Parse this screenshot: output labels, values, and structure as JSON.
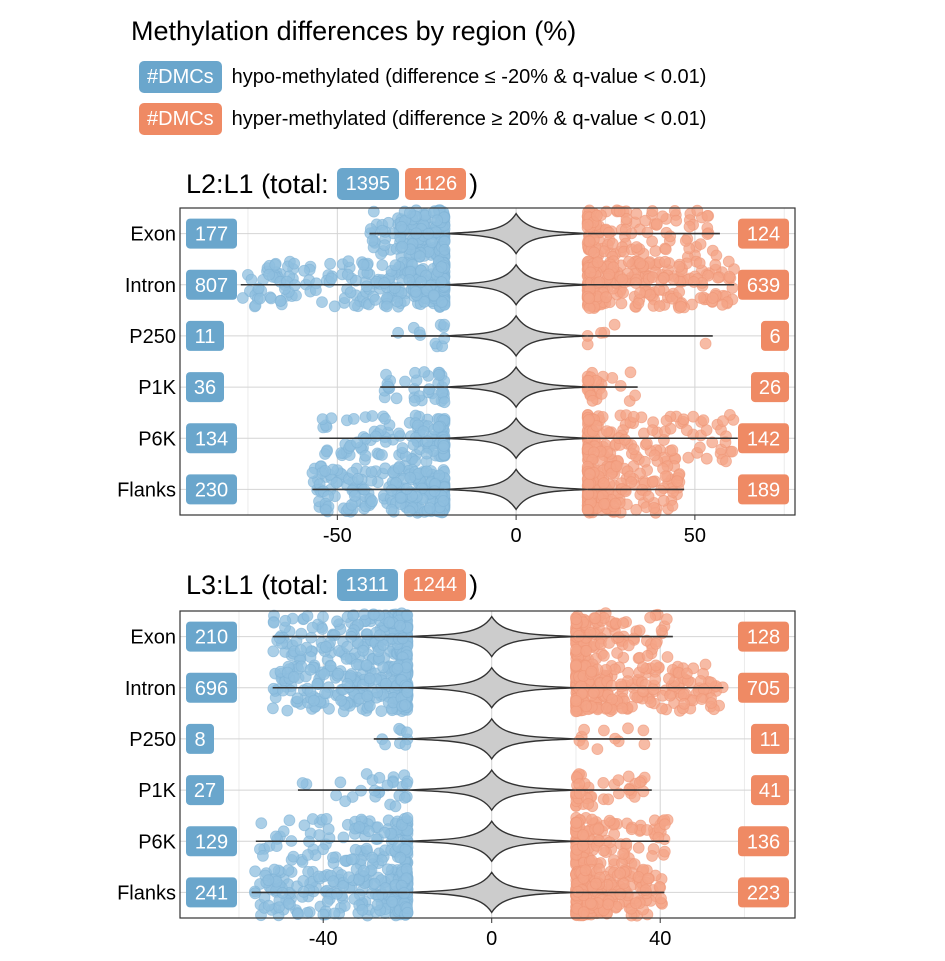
{
  "title": "Methylation differences by region (%)",
  "legend": [
    {
      "badge": "#DMCs",
      "text": "hypo-methylated  (difference ≤ -20% & q-value < 0.01)",
      "color": "#6aa6cc"
    },
    {
      "badge": "#DMCs",
      "text": "hyper-methylated (difference ≥ 20% & q-value < 0.01)",
      "color": "#ef8a64"
    }
  ],
  "colors": {
    "hypo_point": "#8fbfdf",
    "hyper_point": "#f4a487",
    "violin": "#cccccc",
    "hypo_badge": "#6aa6cc",
    "hyper_badge": "#ef8a64"
  },
  "chart_data": [
    {
      "type": "scatter",
      "title_prefix": "L2:L1 (total:",
      "title_suffix": ")",
      "total_hypo": "1395",
      "total_hyper": "1126",
      "categories": [
        "Exon",
        "Intron",
        "P250",
        "P1K",
        "P6K",
        "Flanks"
      ],
      "hypo_counts": [
        "177",
        "807",
        "11",
        "36",
        "134",
        "230"
      ],
      "hyper_counts": [
        "124",
        "639",
        "6",
        "26",
        "142",
        "189"
      ],
      "whisker_min": [
        -41,
        -77,
        -35,
        -38,
        -55,
        -57
      ],
      "whisker_max": [
        57,
        61,
        55,
        34,
        62,
        47
      ],
      "xlim": [
        -94,
        78
      ],
      "xticks": [
        -50,
        0,
        50
      ],
      "grid": true
    },
    {
      "type": "scatter",
      "title_prefix": "L3:L1 (total:",
      "title_suffix": ")",
      "total_hypo": "1311",
      "total_hyper": "1244",
      "categories": [
        "Exon",
        "Intron",
        "P250",
        "P1K",
        "P6K",
        "Flanks"
      ],
      "hypo_counts": [
        "210",
        "696",
        "8",
        "27",
        "129",
        "241"
      ],
      "hyper_counts": [
        "128",
        "705",
        "11",
        "41",
        "136",
        "223"
      ],
      "whisker_min": [
        -52,
        -52,
        -28,
        -46,
        -56,
        -57
      ],
      "whisker_max": [
        43,
        55,
        38,
        38,
        42,
        41
      ],
      "xlim": [
        -74,
        72
      ],
      "xticks": [
        -40,
        0,
        40
      ],
      "grid": true
    }
  ]
}
